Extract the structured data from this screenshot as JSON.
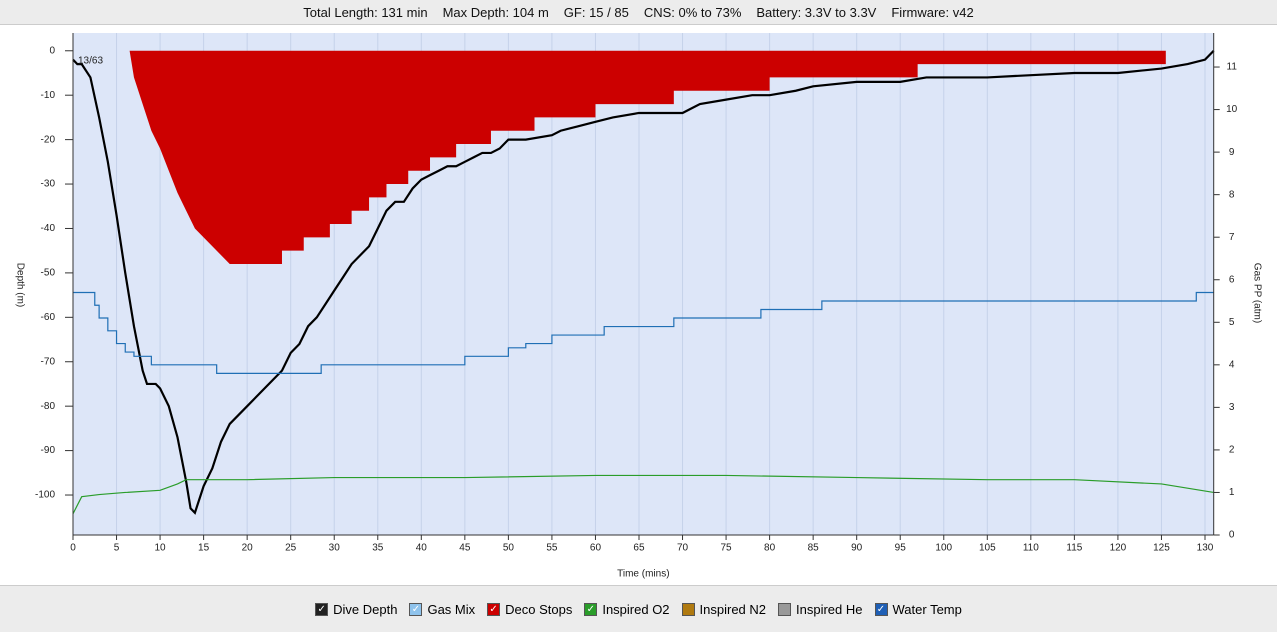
{
  "header": {
    "items": [
      "Total Length: 131 min",
      "Max Depth: 104 m",
      "GF: 15 / 85",
      "CNS: 0% to 73%",
      "Battery: 3.3V to 3.3V",
      "Firmware: v42"
    ]
  },
  "chart_data": {
    "type": "line",
    "xlabel": "Time (mins)",
    "ylabel": "Depth (m)",
    "y2label": "Gas PP (atm)",
    "annotation": "13/63",
    "xlim": [
      0,
      131
    ],
    "xticks": [
      0,
      5,
      10,
      15,
      20,
      25,
      30,
      35,
      40,
      45,
      50,
      55,
      60,
      65,
      70,
      75,
      80,
      85,
      90,
      95,
      100,
      105,
      110,
      115,
      120,
      125,
      130
    ],
    "ylim": [
      -109,
      4
    ],
    "yticks": [
      0,
      -10,
      -20,
      -30,
      -40,
      -50,
      -60,
      -70,
      -80,
      -90,
      -100
    ],
    "y2lim": [
      0,
      11.8
    ],
    "y2ticks": [
      0,
      1,
      2,
      3,
      4,
      5,
      6,
      7,
      8,
      9,
      10,
      11
    ],
    "grid": true,
    "series": [
      {
        "name": "Deco Stops",
        "color": "#cc0000",
        "style": "area",
        "x": [
          6.5,
          7,
          8,
          9,
          10,
          11,
          12,
          13,
          14,
          15,
          16,
          17,
          18,
          24,
          24,
          26.5,
          26.5,
          29.5,
          29.5,
          32,
          32,
          34,
          34,
          36,
          36,
          38.5,
          38.5,
          41,
          41,
          44,
          44,
          48,
          48,
          53,
          53,
          60,
          60,
          69,
          69,
          80,
          80,
          97,
          97,
          125.5,
          125.5
        ],
        "values": [
          0,
          -6,
          -12,
          -18,
          -22,
          -27,
          -32,
          -36,
          -40,
          -42,
          -44,
          -46,
          -48,
          -48,
          -45,
          -45,
          -42,
          -42,
          -39,
          -39,
          -36,
          -36,
          -33,
          -33,
          -30,
          -30,
          -27,
          -27,
          -24,
          -24,
          -21,
          -21,
          -18,
          -18,
          -15,
          -15,
          -12,
          -12,
          -9,
          -9,
          -6,
          -6,
          -3,
          -3,
          0
        ]
      },
      {
        "name": "Dive Depth",
        "color": "#000000",
        "style": "line",
        "x": [
          0,
          0.5,
          1,
          2,
          3,
          4,
          5,
          6,
          7,
          8,
          8.5,
          9.5,
          10,
          11,
          12,
          13,
          13.5,
          14,
          15,
          16,
          17,
          18,
          19,
          20,
          21,
          22,
          23,
          24,
          25,
          26,
          27,
          28,
          29,
          30,
          31,
          32,
          33,
          34,
          35,
          36,
          37,
          38,
          39,
          40,
          41,
          42,
          43,
          44,
          45,
          46,
          47,
          48,
          49,
          50,
          52,
          55,
          56,
          58,
          60,
          62,
          65,
          70,
          71,
          72,
          75,
          78,
          80,
          83,
          85,
          90,
          95,
          98,
          105,
          110,
          115,
          120,
          125,
          128,
          130,
          131
        ],
        "values": [
          -2,
          -3,
          -3,
          -6,
          -15,
          -25,
          -37,
          -50,
          -62,
          -72,
          -75,
          -75,
          -76,
          -80,
          -87,
          -97,
          -103,
          -104,
          -98,
          -94,
          -88,
          -84,
          -82,
          -80,
          -78,
          -76,
          -74,
          -72,
          -68,
          -66,
          -62,
          -60,
          -57,
          -54,
          -51,
          -48,
          -46,
          -44,
          -40,
          -36,
          -34,
          -34,
          -31,
          -29,
          -28,
          -27,
          -26,
          -26,
          -25,
          -24,
          -23,
          -23,
          -22,
          -20,
          -20,
          -19,
          -18,
          -17,
          -16,
          -15,
          -14,
          -14,
          -13,
          -12,
          -11,
          -10,
          -10,
          -9,
          -8,
          -7,
          -7,
          -6,
          -6,
          -5.5,
          -5,
          -5,
          -4,
          -3,
          -2,
          0
        ]
      },
      {
        "name": "Gas Mix",
        "color": "#1f6fb5",
        "style": "step",
        "axis": "y2",
        "x": [
          0,
          2.5,
          3,
          4,
          5,
          6,
          7,
          9,
          16.5,
          28.5,
          45,
          50,
          52,
          55,
          61,
          69,
          79,
          86,
          129,
          131
        ],
        "values": [
          5.7,
          5.4,
          5.1,
          4.8,
          4.5,
          4.3,
          4.2,
          4.0,
          3.8,
          4.0,
          4.2,
          4.4,
          4.5,
          4.7,
          4.9,
          5.1,
          5.3,
          5.5,
          5.7,
          5.7
        ]
      },
      {
        "name": "Inspired O2",
        "color": "#2a9d2a",
        "style": "line",
        "axis": "y2",
        "x": [
          0,
          1,
          3,
          6,
          10,
          12,
          13,
          20,
          30,
          45,
          60,
          75,
          90,
          105,
          115,
          125,
          131
        ],
        "values": [
          0.5,
          0.9,
          0.95,
          1.0,
          1.05,
          1.2,
          1.3,
          1.3,
          1.35,
          1.35,
          1.4,
          1.4,
          1.35,
          1.3,
          1.3,
          1.2,
          1.0
        ]
      }
    ],
    "legend": [
      {
        "name": "Dive Depth",
        "color": "#222222",
        "checked": true
      },
      {
        "name": "Gas Mix",
        "color": "#8fc3ec",
        "checked": true
      },
      {
        "name": "Deco Stops",
        "color": "#cc0000",
        "checked": true
      },
      {
        "name": "Inspired O2",
        "color": "#2a9d2a",
        "checked": true
      },
      {
        "name": "Inspired N2",
        "color": "#b07a10",
        "checked": false
      },
      {
        "name": "Inspired He",
        "color": "#999999",
        "checked": false
      },
      {
        "name": "Water Temp",
        "color": "#1f5fb5",
        "checked": true
      }
    ]
  }
}
